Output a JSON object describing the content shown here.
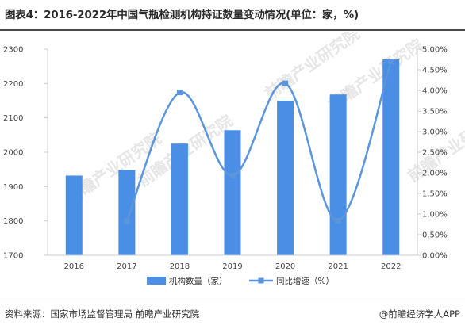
{
  "header": {
    "title": "图表4：2016-2022年中国气瓶检测机构持证数量变动情况(单位：家，%)"
  },
  "footer": {
    "source": "资料来源：国家市场监督管理局 前瞻产业研究院",
    "credit": "@前瞻经济学人APP"
  },
  "watermark": {
    "text": "前瞻产业研究院"
  },
  "colors": {
    "bar": "#4b8ee6",
    "line": "#5b95dc",
    "axis": "#cccccc"
  },
  "chart_data": {
    "type": "bar",
    "categories": [
      "2016",
      "2017",
      "2018",
      "2019",
      "2020",
      "2021",
      "2022"
    ],
    "series": [
      {
        "name": "机构数量（家）",
        "type": "bar",
        "axis": "left",
        "values": [
          1932,
          1948,
          2025,
          2064,
          2150,
          2168,
          2270
        ]
      },
      {
        "name": "同比增速（%）",
        "type": "line",
        "axis": "right",
        "values": [
          null,
          0.83,
          3.95,
          1.93,
          4.17,
          0.84,
          4.7
        ]
      }
    ],
    "y_left": {
      "min": 1700,
      "max": 2300,
      "ticks": [
        "1700",
        "1800",
        "1900",
        "2000",
        "2100",
        "2200",
        "2300"
      ]
    },
    "y_right": {
      "min": 0,
      "max": 5,
      "ticks": [
        "0.00%",
        "0.50%",
        "1.00%",
        "1.50%",
        "2.00%",
        "2.50%",
        "3.00%",
        "3.50%",
        "4.00%",
        "4.50%",
        "5.00%"
      ]
    },
    "grid": false,
    "legend": "bottom-center"
  }
}
